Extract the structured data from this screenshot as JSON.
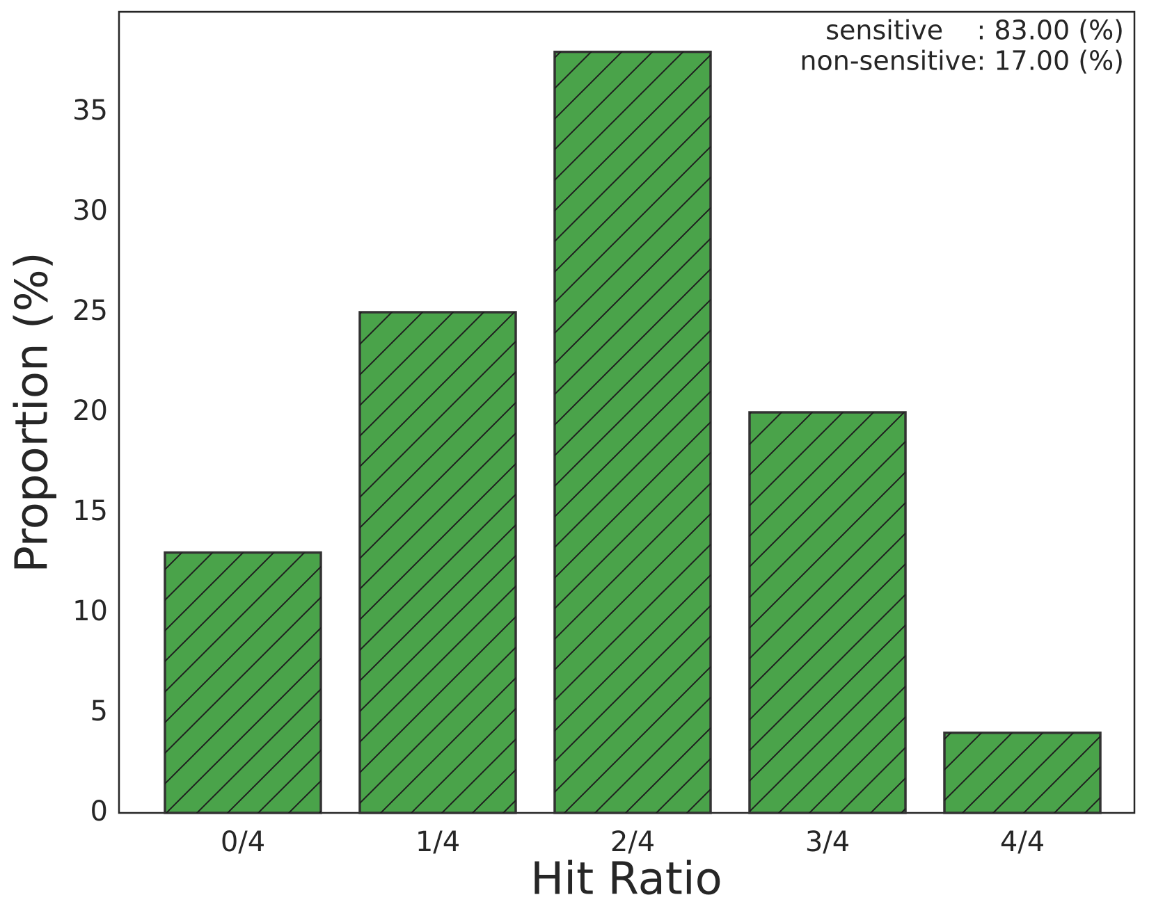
{
  "chart_data": {
    "type": "bar",
    "categories": [
      "0/4",
      "1/4",
      "2/4",
      "3/4",
      "4/4"
    ],
    "values": [
      13,
      25,
      38,
      20,
      4
    ],
    "color": "#4aa34a",
    "xlabel": "Hit Ratio",
    "ylabel": "Proportion (%)",
    "ylim": [
      0,
      40
    ],
    "yticks": [
      0,
      5,
      10,
      15,
      20,
      25,
      30,
      35
    ],
    "grid": false,
    "hatch": "/",
    "annotations": [
      "sensitive    : 83.00 (%)",
      "non-sensitive: 17.00 (%)"
    ]
  }
}
